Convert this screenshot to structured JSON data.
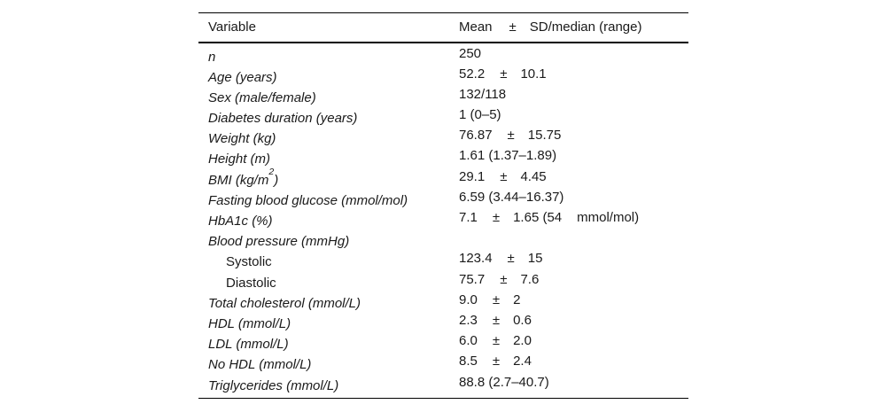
{
  "table": {
    "header": {
      "variable_col": "Variable",
      "mean_col": "Mean",
      "pm_col": "±",
      "sd_col": "SD/median (range)"
    },
    "rows": [
      {
        "label": "n",
        "mean": "250"
      },
      {
        "label": "Age (years)",
        "mean": "52.2",
        "pm": "±",
        "sd": "10.1"
      },
      {
        "label": "Sex (male/female)",
        "mean": "132/118"
      },
      {
        "label": "Diabetes duration (years)",
        "mean": "1 (0–5)"
      },
      {
        "label": "Weight (kg)",
        "mean": "76.87",
        "pm": "±",
        "sd": "15.75"
      },
      {
        "label": "Height (m)",
        "mean": "1.61 (1.37–1.89)"
      },
      {
        "label": "BMI (kg/m",
        "sup": "2",
        "post": ")",
        "mean": "29.1",
        "pm": "±",
        "sd": "4.45"
      },
      {
        "label": "Fasting blood glucose (mmol/mol)",
        "mean": "6.59 (3.44–16.37)"
      },
      {
        "label": "HbA1c (%)",
        "mean": "7.1",
        "pm": "±",
        "sd": "1.65 (54",
        "extra": "mmol/mol)"
      },
      {
        "label": "Blood pressure (mmHg)"
      },
      {
        "label": "Systolic",
        "indent": true,
        "mean": "123.4",
        "pm": "±",
        "sd": "15"
      },
      {
        "label": "Diastolic",
        "indent": true,
        "mean": "75.7",
        "pm": "±",
        "sd": "7.6"
      },
      {
        "label": "Total cholesterol (mmol/L)",
        "mean": "9.0",
        "pm": "±",
        "sd": "2"
      },
      {
        "label": "HDL (mmol/L)",
        "mean": "2.3",
        "pm": "±",
        "sd": "0.6"
      },
      {
        "label": "LDL (mmol/L)",
        "mean": "6.0",
        "pm": "±",
        "sd": "2.0"
      },
      {
        "label": "No HDL (mmol/L)",
        "mean": "8.5",
        "pm": "±",
        "sd": "2.4"
      },
      {
        "label": "Triglycerides (mmol/L)",
        "mean": "88.8 (2.7–40.7)"
      }
    ]
  }
}
